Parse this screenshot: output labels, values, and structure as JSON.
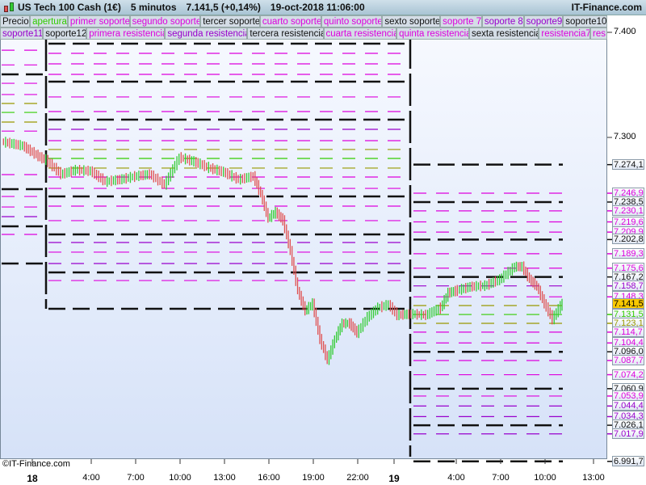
{
  "header": {
    "instrument": "US Tech 100 Cash (1€)",
    "timeframe": "5 minutos",
    "price": "7.141,5 (+0,14%)",
    "datetime": "19-oct-2018 11:06:00",
    "brand": "IT-Finance.com"
  },
  "legend": {
    "row1": [
      {
        "label": "Precio",
        "color": "#111111"
      },
      {
        "label": "apertura",
        "color": "#33cc00"
      },
      {
        "label": "primer soporte",
        "color": "#dd00dd"
      },
      {
        "label": "segundo soporte",
        "color": "#dd00dd"
      },
      {
        "label": "tercer soporte",
        "color": "#111111"
      },
      {
        "label": "cuarto soporte",
        "color": "#dd00dd"
      },
      {
        "label": "quinto soporte",
        "color": "#dd00dd"
      },
      {
        "label": "sexto soporte",
        "color": "#111111"
      },
      {
        "label": "soporte 7",
        "color": "#dd00dd"
      },
      {
        "label": "soporte 8",
        "color": "#9900cc"
      },
      {
        "label": "soporte9",
        "color": "#9900cc"
      },
      {
        "label": "soporte10",
        "color": "#111111"
      }
    ],
    "row2": [
      {
        "label": "soporte11",
        "color": "#9900cc"
      },
      {
        "label": "soporte12",
        "color": "#111111"
      },
      {
        "label": "primera resistencia",
        "color": "#dd00dd"
      },
      {
        "label": "segunda resistencia",
        "color": "#9900cc"
      },
      {
        "label": "tercera resistencia",
        "color": "#111111"
      },
      {
        "label": "cuarta resistencia",
        "color": "#dd00dd"
      },
      {
        "label": "quinta resistencia",
        "color": "#dd00dd"
      },
      {
        "label": "sexta resistencia",
        "color": "#111111"
      },
      {
        "label": "resistencia7",
        "color": "#dd00dd"
      },
      {
        "label": "res",
        "color": "#dd00dd"
      }
    ]
  },
  "copyright": "©IT-Finance.com",
  "colors": {
    "k": "#111111",
    "m": "#dd00dd",
    "p": "#9900cc",
    "g": "#33cc00",
    "o": "#999900",
    "up": "#33cc33",
    "down": "#e05050",
    "current": "#f8c800"
  },
  "chart_data": {
    "type": "line",
    "ylim": [
      6980,
      7410
    ],
    "y_ticks": [
      {
        "value": 7400,
        "label": "7.400"
      },
      {
        "value": 7300,
        "label": "7.300"
      }
    ],
    "x_ticks": [
      "18",
      "4:00",
      "7:00",
      "10:00",
      "13:00",
      "16:00",
      "19:00",
      "22:00",
      "19",
      "4:00",
      "7:00",
      "10:00",
      "13:00"
    ],
    "current_price": {
      "value": 7141.5,
      "label": "7.141,5"
    },
    "price_labels": [
      {
        "value": 7274.1,
        "label": "7.274,1",
        "c": "k"
      },
      {
        "value": 7246.9,
        "label": "7.246,9",
        "c": "m"
      },
      {
        "value": 7238.5,
        "label": "7.238,5",
        "c": "k"
      },
      {
        "value": 7230.1,
        "label": "7.230,1",
        "c": "m"
      },
      {
        "value": 7219.6,
        "label": "7.219,6",
        "c": "m"
      },
      {
        "value": 7209.9,
        "label": "7.209,9",
        "c": "m"
      },
      {
        "value": 7202.8,
        "label": "7.202,8",
        "c": "k"
      },
      {
        "value": 7189.3,
        "label": "7.189,3",
        "c": "m"
      },
      {
        "value": 7175.6,
        "label": "7.175,6",
        "c": "m"
      },
      {
        "value": 7167.2,
        "label": "7.167,2",
        "c": "k"
      },
      {
        "value": 7158.7,
        "label": "7.158,7",
        "c": "p"
      },
      {
        "value": 7148.3,
        "label": "7.148,3",
        "c": "m"
      },
      {
        "value": 7131.5,
        "label": "7.131,5",
        "c": "g"
      },
      {
        "value": 7123.1,
        "label": "7.123,1",
        "c": "o"
      },
      {
        "value": 7114.7,
        "label": "7.114,7",
        "c": "m"
      },
      {
        "value": 7104.4,
        "label": "7.104,4",
        "c": "m"
      },
      {
        "value": 7096.0,
        "label": "7.096,0",
        "c": "k"
      },
      {
        "value": 7087.7,
        "label": "7.087,7",
        "c": "m"
      },
      {
        "value": 7074.2,
        "label": "7.074,2",
        "c": "m"
      },
      {
        "value": 7060.9,
        "label": "7.060,9",
        "c": "k"
      },
      {
        "value": 7053.9,
        "label": "7.053,9",
        "c": "m"
      },
      {
        "value": 7044.4,
        "label": "7.044,4",
        "c": "p"
      },
      {
        "value": 7034.3,
        "label": "7.034,3",
        "c": "p"
      },
      {
        "value": 7026.1,
        "label": "7.026,1",
        "c": "k"
      },
      {
        "value": 7017.9,
        "label": "7.017,9",
        "c": "p"
      },
      {
        "value": 6991.7,
        "label": "6.991,7",
        "c": "k"
      }
    ],
    "levels_day17": [
      [
        7360,
        "k"
      ],
      [
        7250.8,
        "k"
      ],
      [
        7215.4,
        "k"
      ],
      [
        7180,
        "k"
      ],
      [
        7383,
        "m"
      ],
      [
        7369,
        "m"
      ],
      [
        7351.5,
        "m"
      ],
      [
        7340.8,
        "m"
      ],
      [
        7306,
        "m"
      ],
      [
        7264.6,
        "m"
      ],
      [
        7243.8,
        "m"
      ],
      [
        7233.8,
        "m"
      ],
      [
        7224.6,
        "p"
      ],
      [
        7207.7,
        "m"
      ],
      [
        7332.3,
        "o"
      ],
      [
        7314.6,
        "o"
      ],
      [
        7323.8,
        "g"
      ]
    ],
    "levels_day18": [
      [
        7389.2,
        "k"
      ],
      [
        7353.1,
        "k"
      ],
      [
        7316.9,
        "k"
      ],
      [
        7243.8,
        "k"
      ],
      [
        7207.7,
        "k"
      ],
      [
        7171.5,
        "k"
      ],
      [
        7136.9,
        "k"
      ],
      [
        7380,
        "m"
      ],
      [
        7370,
        "m"
      ],
      [
        7360,
        "m"
      ],
      [
        7338.5,
        "m"
      ],
      [
        7324.6,
        "m"
      ],
      [
        7307.7,
        "p"
      ],
      [
        7296.9,
        "m"
      ],
      [
        7262.3,
        "m"
      ],
      [
        7251.5,
        "m"
      ],
      [
        7234.6,
        "m"
      ],
      [
        7220.8,
        "m"
      ],
      [
        7200,
        "p"
      ],
      [
        7190.8,
        "m"
      ],
      [
        7180,
        "p"
      ],
      [
        7163.8,
        "m"
      ],
      [
        7288.5,
        "o"
      ],
      [
        7270.8,
        "o"
      ],
      [
        7280,
        "g"
      ]
    ],
    "levels_day19": [
      [
        7140,
        "o"
      ]
    ],
    "price_series": [
      [
        "17 22:00",
        7296
      ],
      [
        "17 23:00",
        7292
      ],
      [
        "17 23:50",
        7281
      ],
      [
        "18 01:00",
        7278.5
      ],
      [
        "18 02:00",
        7265
      ],
      [
        "18 03:00",
        7269
      ],
      [
        "18 04:00",
        7268
      ],
      [
        "18 05:00",
        7258
      ],
      [
        "18 06:00",
        7260
      ],
      [
        "18 07:00",
        7263
      ],
      [
        "18 08:00",
        7265
      ],
      [
        "18 09:00",
        7255
      ],
      [
        "18 10:00",
        7281
      ],
      [
        "18 11:00",
        7277
      ],
      [
        "18 12:00",
        7271
      ],
      [
        "18 13:00",
        7267
      ],
      [
        "18 14:00",
        7260
      ],
      [
        "18 15:00",
        7263
      ],
      [
        "18 15:30",
        7246
      ],
      [
        "18 16:00",
        7223
      ],
      [
        "18 16:30",
        7229
      ],
      [
        "18 17:00",
        7221
      ],
      [
        "18 17:30",
        7192
      ],
      [
        "18 18:00",
        7154
      ],
      [
        "18 18:30",
        7135
      ],
      [
        "18 19:00",
        7142
      ],
      [
        "18 19:30",
        7108
      ],
      [
        "18 20:00",
        7088
      ],
      [
        "18 20:30",
        7108
      ],
      [
        "18 21:00",
        7123
      ],
      [
        "18 21:30",
        7123
      ],
      [
        "18 22:00",
        7114
      ],
      [
        "18 22:30",
        7129
      ],
      [
        "18 23:00",
        7138
      ],
      [
        "18 23:30",
        7141
      ],
      [
        "18 23:55",
        7131
      ],
      [
        "19 01:00",
        7132
      ],
      [
        "19 02:00",
        7131
      ],
      [
        "19 03:00",
        7138
      ],
      [
        "19 03:30",
        7152
      ],
      [
        "19 04:00",
        7154
      ],
      [
        "19 05:00",
        7158
      ],
      [
        "19 06:00",
        7159
      ],
      [
        "19 07:00",
        7165
      ],
      [
        "19 08:00",
        7177
      ],
      [
        "19 08:30",
        7177
      ],
      [
        "19 09:00",
        7165
      ],
      [
        "19 09:30",
        7158
      ],
      [
        "19 10:00",
        7142
      ],
      [
        "19 10:30",
        7127
      ],
      [
        "19 11:00",
        7140
      ],
      [
        "19 11:06",
        7141.5
      ]
    ]
  }
}
